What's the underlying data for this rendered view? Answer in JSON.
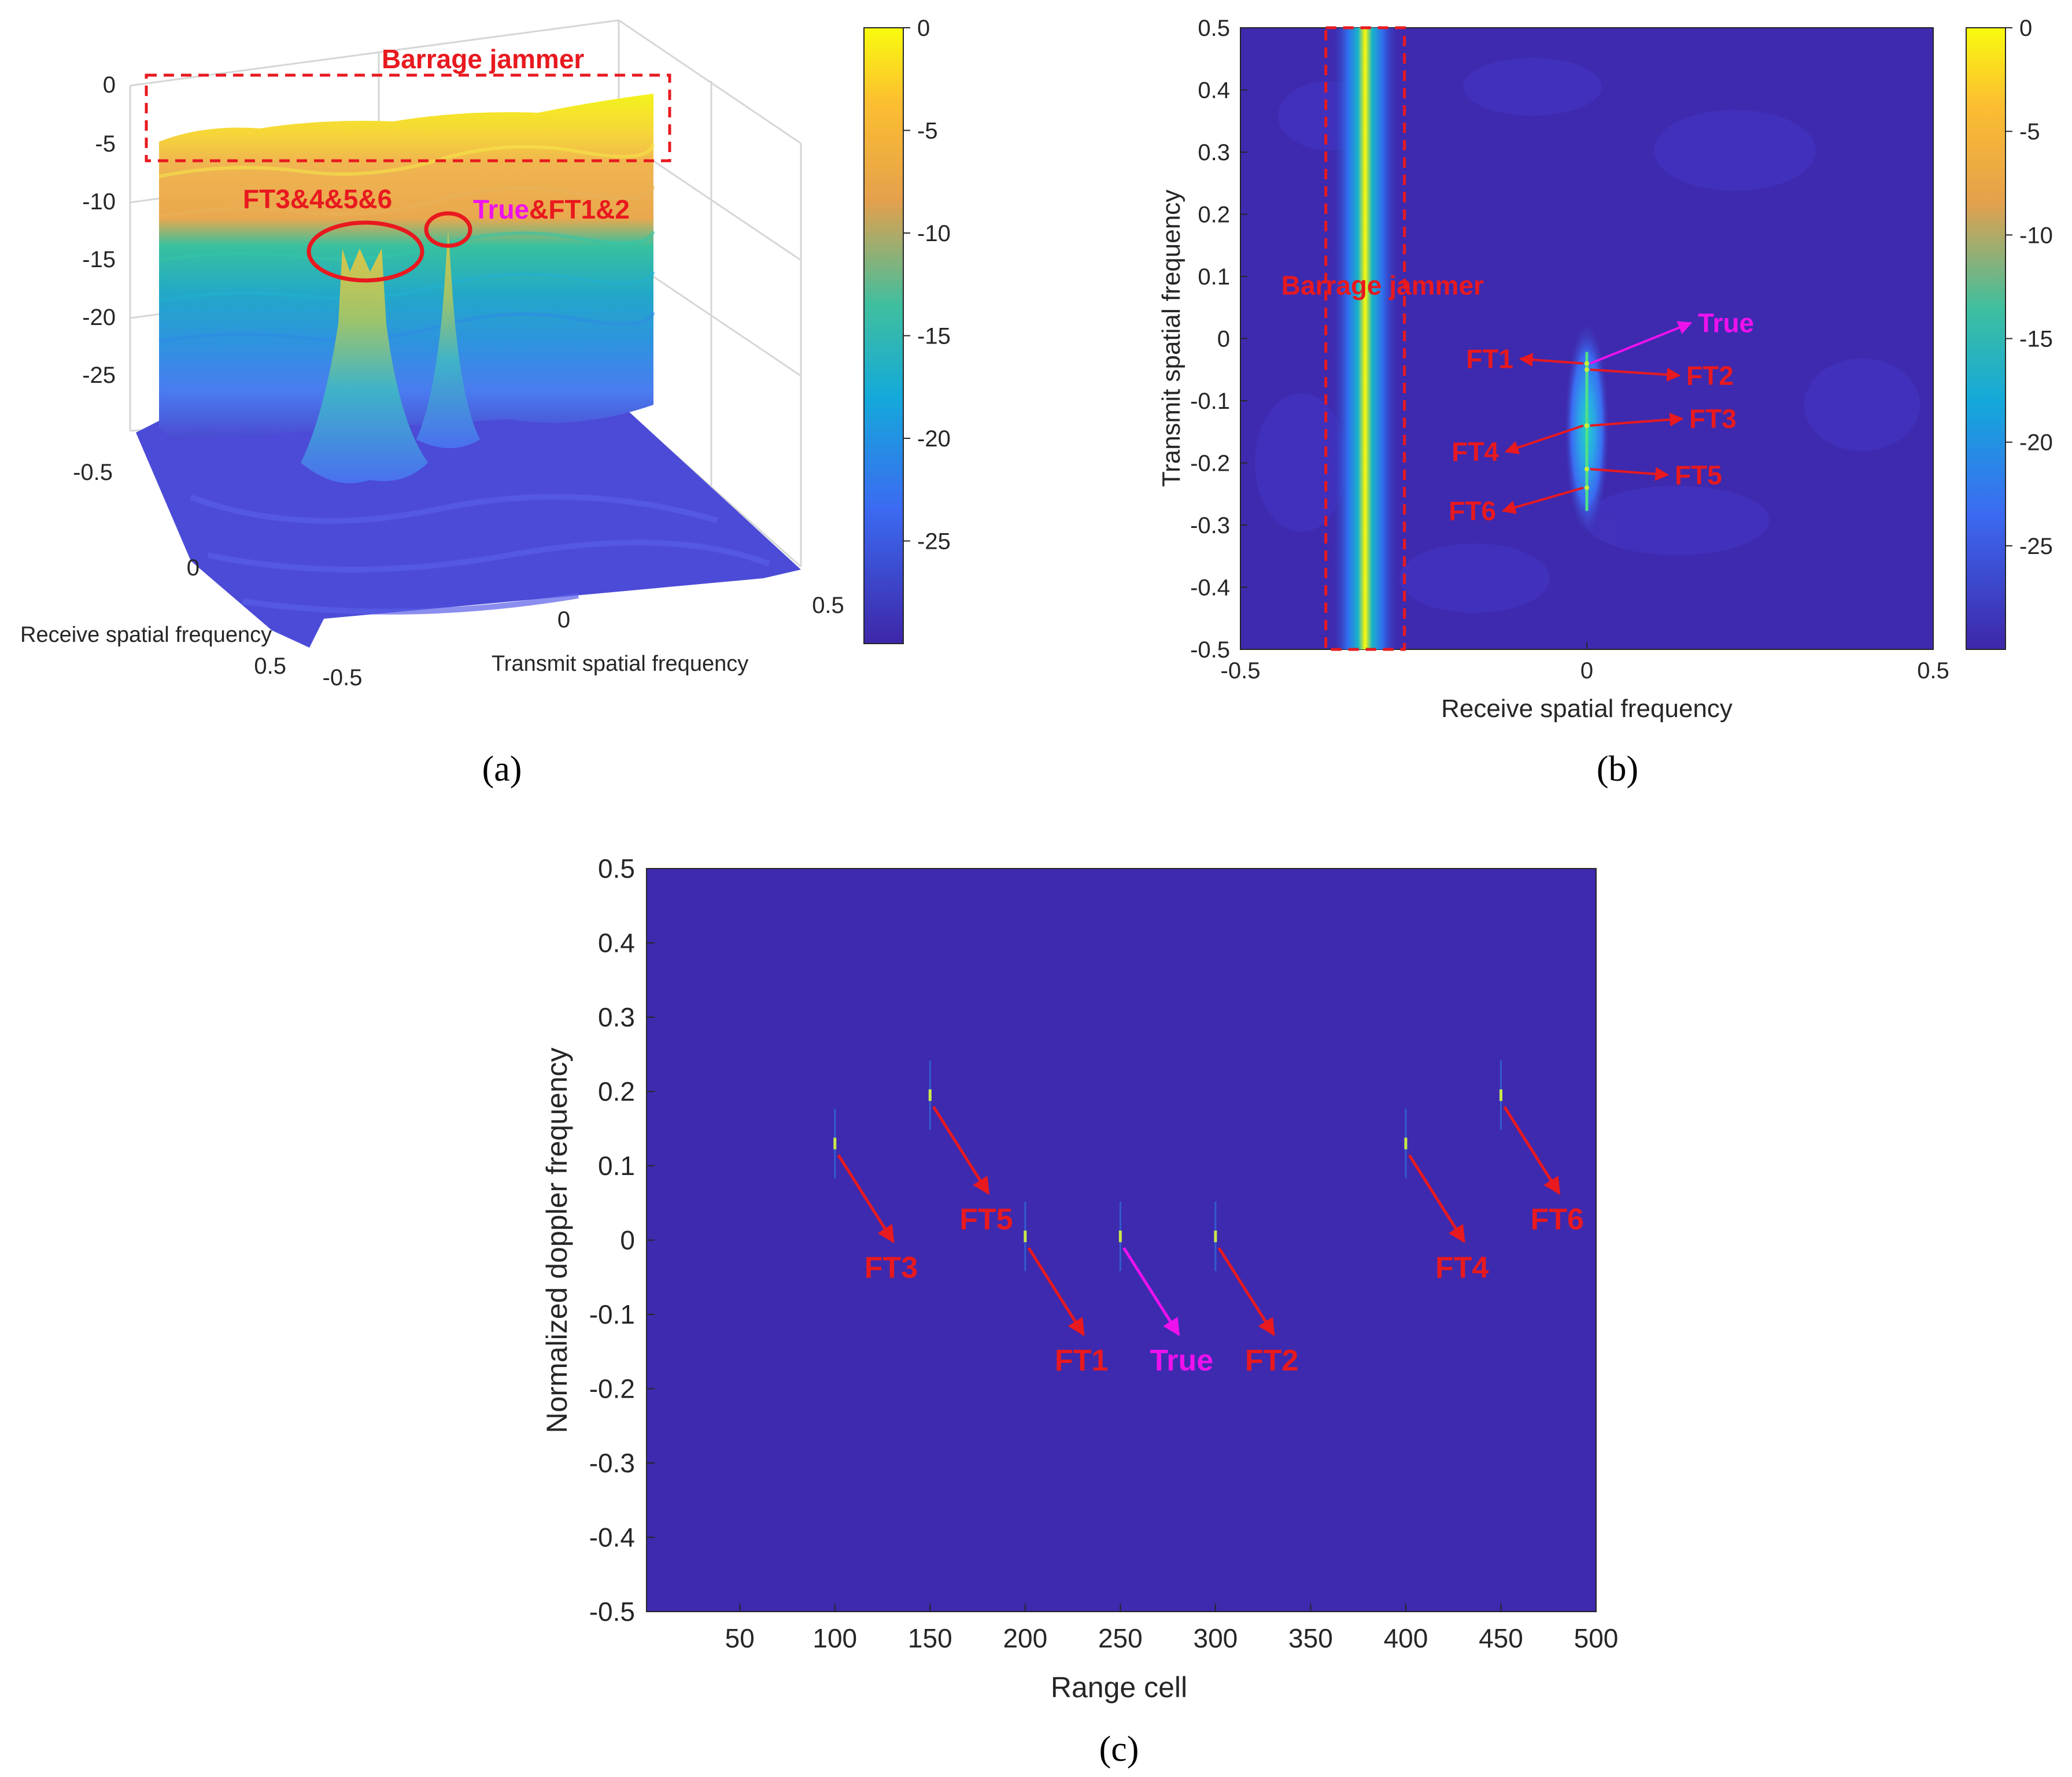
{
  "chart_data": [
    {
      "type": "surface",
      "panel_label": "(a)",
      "xlabel": "Receive spatial frequency",
      "ylabel": "Transmit spatial frequency",
      "receive_ticks": [
        "-0.5",
        "0",
        "0.5"
      ],
      "transmit_ticks": [
        "-0.5",
        "0",
        "0.5"
      ],
      "z_ticks": [
        "0",
        "-5",
        "-10",
        "-15",
        "-20",
        "-25"
      ],
      "zlim": [
        -30,
        0
      ],
      "colorbar": {
        "ticks": [
          "0",
          "-5",
          "-10",
          "-15",
          "-20",
          "-25"
        ],
        "range": [
          -30,
          0
        ]
      },
      "annotations": {
        "barrage": "Barrage jammer",
        "cluster": "FT3&4&5&6",
        "true_part": "True",
        "ft_part": "&FT1&2"
      }
    },
    {
      "type": "heatmap",
      "panel_label": "(b)",
      "xlabel": "Receive spatial frequency",
      "ylabel": "Transmit spatial frequency",
      "xlim": [
        -0.5,
        0.5
      ],
      "ylim": [
        -0.5,
        0.5
      ],
      "x_ticks": [
        "-0.5",
        "0",
        "0.5"
      ],
      "y_ticks": [
        "0.5",
        "0.4",
        "0.3",
        "0.2",
        "0.1",
        "0",
        "-0.1",
        "-0.2",
        "-0.3",
        "-0.4",
        "-0.5"
      ],
      "colorbar": {
        "ticks": [
          "0",
          "-5",
          "-10",
          "-15",
          "-20",
          "-25"
        ],
        "range": [
          -30,
          0
        ]
      },
      "barrage_jammer": {
        "receive_freq": -0.32,
        "label": "Barrage jammer"
      },
      "targets": [
        {
          "name": "True",
          "receive": 0.0,
          "transmit": -0.04
        },
        {
          "name": "FT1",
          "receive": 0.0,
          "transmit": -0.04
        },
        {
          "name": "FT2",
          "receive": 0.0,
          "transmit": -0.05
        },
        {
          "name": "FT3",
          "receive": 0.0,
          "transmit": -0.14
        },
        {
          "name": "FT4",
          "receive": 0.0,
          "transmit": -0.14
        },
        {
          "name": "FT5",
          "receive": 0.0,
          "transmit": -0.21
        },
        {
          "name": "FT6",
          "receive": 0.0,
          "transmit": -0.24
        }
      ]
    },
    {
      "type": "scatter",
      "panel_label": "(c)",
      "xlabel": "Range cell",
      "ylabel": "Normalized doppler frequency",
      "xlim": [
        1,
        500
      ],
      "ylim": [
        -0.5,
        0.5
      ],
      "x_ticks": [
        "50",
        "100",
        "150",
        "200",
        "250",
        "300",
        "350",
        "400",
        "450",
        "500"
      ],
      "y_ticks": [
        "0.5",
        "0.4",
        "0.3",
        "0.2",
        "0.1",
        "0",
        "-0.1",
        "-0.2",
        "-0.3",
        "-0.4",
        "-0.5"
      ],
      "points": [
        {
          "name": "FT3",
          "range_cell": 100,
          "doppler": 0.13
        },
        {
          "name": "FT5",
          "range_cell": 150,
          "doppler": 0.195
        },
        {
          "name": "FT1",
          "range_cell": 200,
          "doppler": 0.005
        },
        {
          "name": "True",
          "range_cell": 250,
          "doppler": 0.005
        },
        {
          "name": "FT2",
          "range_cell": 300,
          "doppler": 0.005
        },
        {
          "name": "FT4",
          "range_cell": 400,
          "doppler": 0.13
        },
        {
          "name": "FT6",
          "range_cell": 450,
          "doppler": 0.195
        }
      ]
    }
  ],
  "colors": {
    "annotation_red": "#e8191f",
    "annotation_magenta": "#ee11ee",
    "background": "#3e26a8",
    "colorbar": [
      "#f9fb0e",
      "#fcbf30",
      "#ea9e3a",
      "#26c1a9",
      "#17a8d9",
      "#3a6cf2",
      "#4436c5",
      "#3e26a8"
    ]
  }
}
